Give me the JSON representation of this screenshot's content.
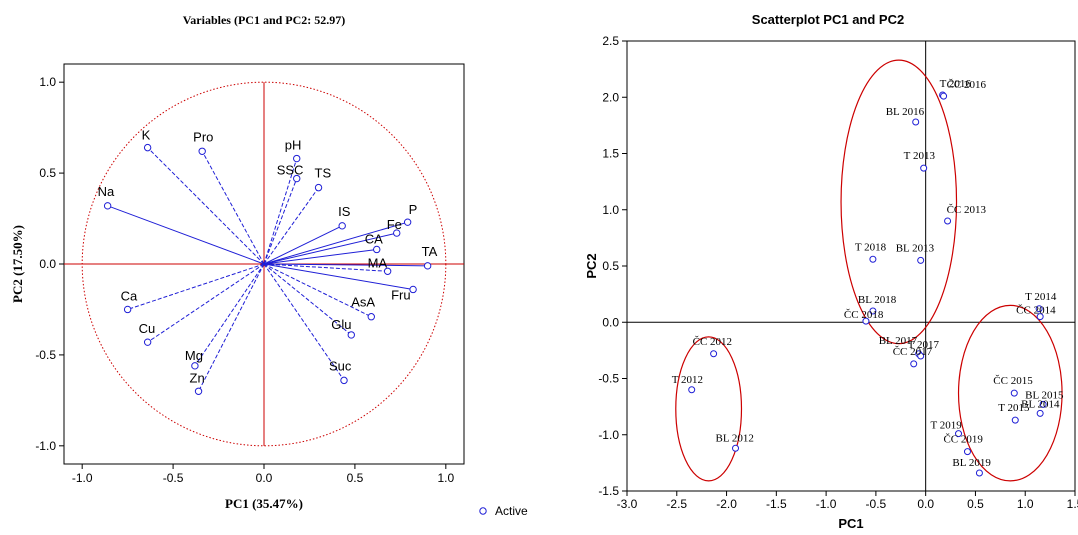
{
  "colors": {
    "point": "#1f1fd6",
    "loading_line": "#1f1fd6",
    "reference_line": "#cc0000",
    "ellipse": "#cc0000",
    "axis": "#000000"
  },
  "chart_data": [
    {
      "type": "scatter",
      "title": "Variables (PC1 and PC2: 52.97)",
      "xlabel": "PC1 (35.47%)",
      "ylabel": "PC2 (17.50%)",
      "xlim": [
        -1.1,
        1.1
      ],
      "ylim": [
        -1.1,
        1.1
      ],
      "xticks": [
        -1.0,
        -0.5,
        0.0,
        0.5,
        1.0
      ],
      "yticks": [
        -1.0,
        -0.5,
        0.0,
        0.5,
        1.0
      ],
      "xtick_labels": [
        "-1.0",
        "-0.5",
        "0.0",
        "0.5",
        "1.0"
      ],
      "ytick_labels": [
        "-1.0",
        "-0.5",
        "0.0",
        "0.5",
        "1.0"
      ],
      "unit_circle_radius": 1.0,
      "legend": {
        "position": "bottom-right",
        "entries": [
          "Active"
        ]
      },
      "points": [
        {
          "label": "K",
          "x": -0.64,
          "y": 0.64,
          "line": "dashed"
        },
        {
          "label": "Pro",
          "x": -0.34,
          "y": 0.62,
          "line": "dashed"
        },
        {
          "label": "Na",
          "x": -0.86,
          "y": 0.32,
          "line": "solid"
        },
        {
          "label": "pH",
          "x": 0.18,
          "y": 0.58,
          "line": "dashed"
        },
        {
          "label": "SSC",
          "x": 0.18,
          "y": 0.47,
          "line": "dashed"
        },
        {
          "label": "TS",
          "x": 0.3,
          "y": 0.42,
          "line": "dashed"
        },
        {
          "label": "IS",
          "x": 0.43,
          "y": 0.21,
          "line": "solid"
        },
        {
          "label": "P",
          "x": 0.79,
          "y": 0.23,
          "line": "solid"
        },
        {
          "label": "Fe",
          "x": 0.73,
          "y": 0.17,
          "line": "solid"
        },
        {
          "label": "CA",
          "x": 0.62,
          "y": 0.08,
          "line": "solid"
        },
        {
          "label": "TA",
          "x": 0.9,
          "y": -0.01,
          "line": "solid"
        },
        {
          "label": "MA",
          "x": 0.68,
          "y": -0.04,
          "line": "dashed"
        },
        {
          "label": "Fru",
          "x": 0.82,
          "y": -0.14,
          "line": "solid"
        },
        {
          "label": "AsA",
          "x": 0.59,
          "y": -0.29,
          "line": "dashed"
        },
        {
          "label": "Glu",
          "x": 0.48,
          "y": -0.39,
          "line": "dashed"
        },
        {
          "label": "Suc",
          "x": 0.44,
          "y": -0.64,
          "line": "dashed"
        },
        {
          "label": "Ca",
          "x": -0.75,
          "y": -0.25,
          "line": "dashed"
        },
        {
          "label": "Cu",
          "x": -0.64,
          "y": -0.43,
          "line": "dashed"
        },
        {
          "label": "Mg",
          "x": -0.38,
          "y": -0.56,
          "line": "dashed"
        },
        {
          "label": "Zn",
          "x": -0.36,
          "y": -0.7,
          "line": "dashed"
        }
      ]
    },
    {
      "type": "scatter",
      "title": "Scatterplot PC1 and PC2",
      "xlabel": "PC1",
      "ylabel": "PC2",
      "xlim": [
        -3.0,
        1.5
      ],
      "ylim": [
        -1.5,
        2.5
      ],
      "xticks": [
        -3.0,
        -2.5,
        -2.0,
        -1.5,
        -1.0,
        -0.5,
        0.0,
        0.5,
        1.0,
        1.5
      ],
      "yticks": [
        -1.5,
        -1.0,
        -0.5,
        0.0,
        0.5,
        1.0,
        1.5,
        2.0,
        2.5
      ],
      "xtick_labels": [
        "-3.0",
        "-2.5",
        "-2.0",
        "-1.5",
        "-1.0",
        "-0.5",
        "0.0",
        "0.5",
        "1.0",
        "1.5"
      ],
      "ytick_labels": [
        "-1.5",
        "-1.0",
        "-0.5",
        "0.0",
        "0.5",
        "1.0",
        "1.5",
        "2.0",
        "2.5"
      ],
      "points": [
        {
          "label": "T 2016",
          "x": 0.17,
          "y": 2.02
        },
        {
          "label": "ČC 2016",
          "x": 0.18,
          "y": 2.01
        },
        {
          "label": "BL 2016",
          "x": -0.1,
          "y": 1.78
        },
        {
          "label": "T 2013",
          "x": -0.02,
          "y": 1.37
        },
        {
          "label": "ČC 2013",
          "x": 0.22,
          "y": 0.9
        },
        {
          "label": "T 2018",
          "x": -0.53,
          "y": 0.56
        },
        {
          "label": "BL 2013",
          "x": -0.05,
          "y": 0.55
        },
        {
          "label": "BL 2018",
          "x": -0.53,
          "y": 0.1
        },
        {
          "label": "ČC 2018",
          "x": -0.6,
          "y": 0.01
        },
        {
          "label": "T 2014",
          "x": 1.14,
          "y": 0.12
        },
        {
          "label": "ČC 2014",
          "x": 1.15,
          "y": 0.05
        },
        {
          "label": "BL 2017",
          "x": -0.07,
          "y": -0.28
        },
        {
          "label": "T 2017",
          "x": -0.05,
          "y": -0.3
        },
        {
          "label": "ČC 2017",
          "x": -0.12,
          "y": -0.37
        },
        {
          "label": "ČC 2012",
          "x": -2.13,
          "y": -0.28
        },
        {
          "label": "T 2012",
          "x": -2.35,
          "y": -0.6
        },
        {
          "label": "BL 2012",
          "x": -1.91,
          "y": -1.12
        },
        {
          "label": "ČC 2015",
          "x": 0.89,
          "y": -0.63
        },
        {
          "label": "BL 2015",
          "x": 1.18,
          "y": -0.73
        },
        {
          "label": "BL 2014",
          "x": 1.15,
          "y": -0.81
        },
        {
          "label": "T 2015",
          "x": 0.9,
          "y": -0.87
        },
        {
          "label": "T 2019",
          "x": 0.33,
          "y": -0.99
        },
        {
          "label": "ČC 2019",
          "x": 0.42,
          "y": -1.15
        },
        {
          "label": "BL 2019",
          "x": 0.54,
          "y": -1.34
        }
      ],
      "ellipses": [
        {
          "name": "group-2012",
          "cx": -2.18,
          "cy": -0.77,
          "rx": 0.33,
          "ry": 0.64
        },
        {
          "name": "group-2013-2018",
          "cx": -0.27,
          "cy": 1.07,
          "rx": 0.58,
          "ry": 1.26
        },
        {
          "name": "group-2014-2019",
          "cx": 0.85,
          "cy": -0.63,
          "rx": 0.52,
          "ry": 0.78
        }
      ]
    }
  ]
}
